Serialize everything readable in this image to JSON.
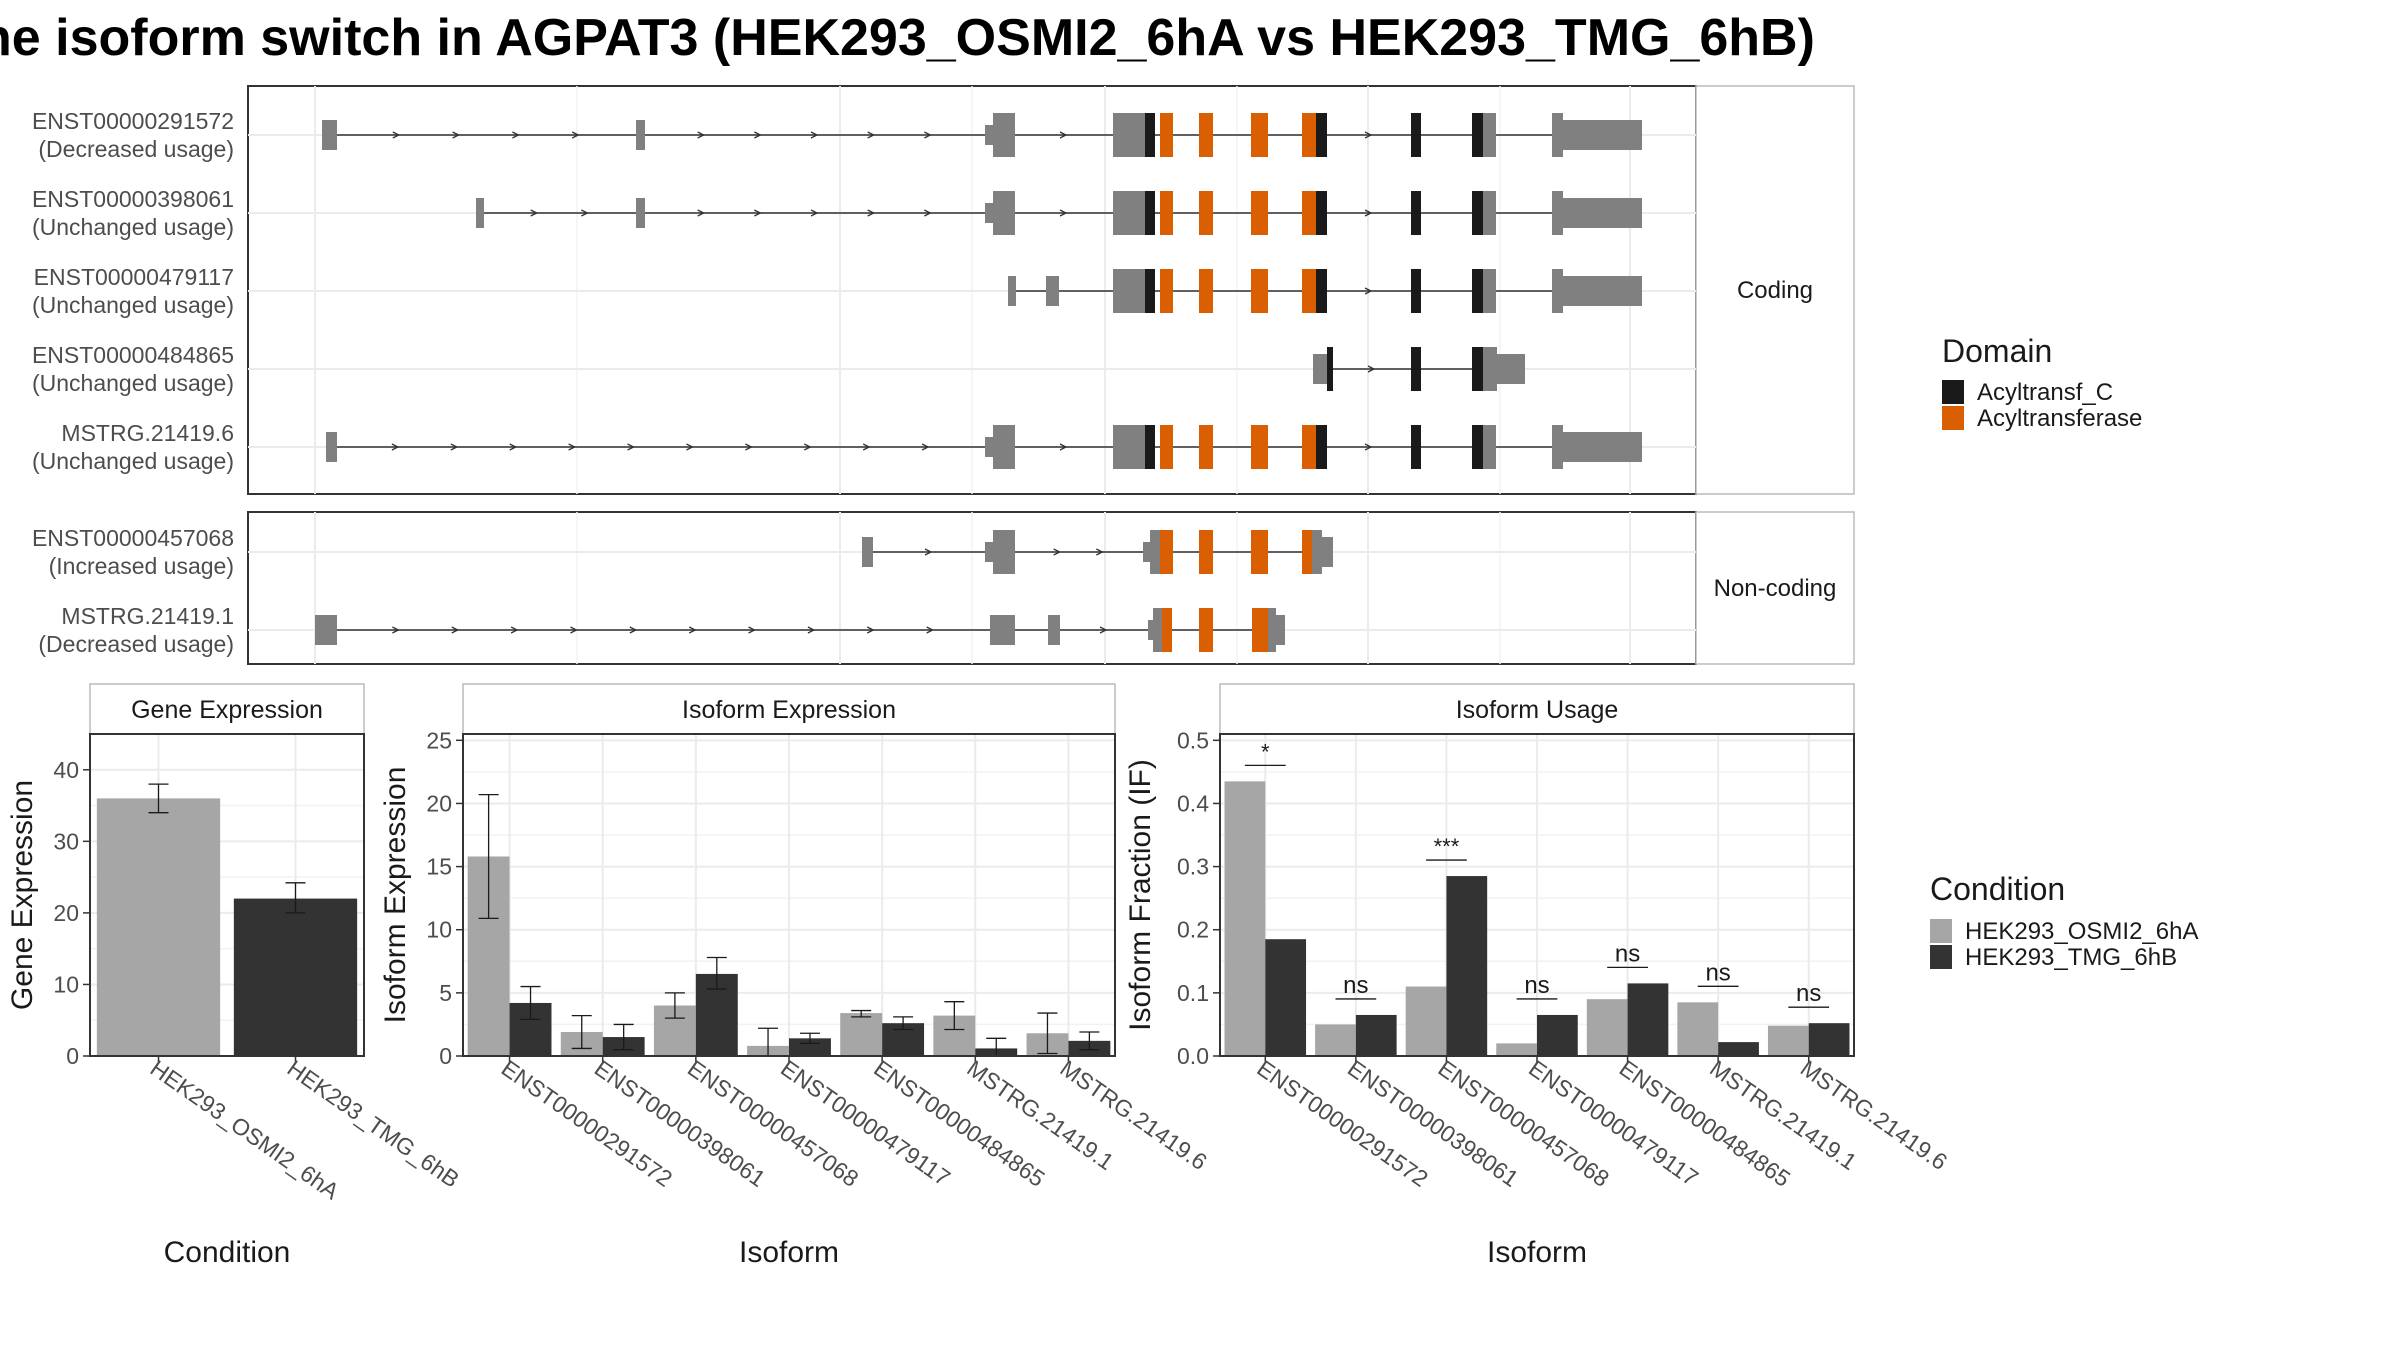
{
  "title": "he isoform switch in AGPAT3 (HEK293_OSMI2_6hA vs HEK293_TMG_6hB)",
  "colors": {
    "domain_acyltransf_c": "#1a1a1a",
    "domain_acyltransferase": "#d95f02",
    "exon": "#808080",
    "condition_a": "#a6a6a6",
    "condition_b": "#333333"
  },
  "structure": {
    "coding_label": "Coding",
    "noncoding_label": "Non-coding",
    "coding": [
      {
        "id": "ENST00000291572",
        "usage": "(Decreased usage)"
      },
      {
        "id": "ENST00000398061",
        "usage": "(Unchanged usage)"
      },
      {
        "id": "ENST00000479117",
        "usage": "(Unchanged usage)"
      },
      {
        "id": "ENST00000484865",
        "usage": "(Unchanged usage)"
      },
      {
        "id": "MSTRG.21419.6",
        "usage": "(Unchanged usage)"
      }
    ],
    "noncoding": [
      {
        "id": "ENST00000457068",
        "usage": "(Increased usage)"
      },
      {
        "id": "MSTRG.21419.1",
        "usage": "(Decreased usage)"
      }
    ]
  },
  "legends": {
    "domain_title": "Domain",
    "domain_items": [
      "Acyltransf_C",
      "Acyltransferase"
    ],
    "condition_title": "Condition",
    "condition_items": [
      "HEK293_OSMI2_6hA",
      "HEK293_TMG_6hB"
    ]
  },
  "chart_data": [
    {
      "type": "bar",
      "title": "Gene Expression",
      "xlabel": "Condition",
      "ylabel": "Gene Expression",
      "categories": [
        "HEK293_OSMI2_6hA",
        "HEK293_TMG_6hB"
      ],
      "values": [
        36,
        22
      ],
      "errors": [
        [
          34,
          38
        ],
        [
          20,
          24.2
        ]
      ],
      "yticks": [
        0,
        10,
        20,
        30,
        40
      ],
      "ylim": [
        0,
        45
      ]
    },
    {
      "type": "bar",
      "title": "Isoform Expression",
      "xlabel": "Isoform",
      "ylabel": "Isoform Expression",
      "categories": [
        "ENST00000291572",
        "ENST00000398061",
        "ENST00000457068",
        "ENST00000479117",
        "ENST00000484865",
        "MSTRG.21419.1",
        "MSTRG.21419.6"
      ],
      "series": [
        {
          "name": "HEK293_OSMI2_6hA",
          "values": [
            15.8,
            1.9,
            4.0,
            0.8,
            3.4,
            3.2,
            1.8
          ],
          "errors": [
            [
              10.9,
              20.7
            ],
            [
              0.6,
              3.2
            ],
            [
              3.0,
              5.0
            ],
            [
              0.0,
              2.2
            ],
            [
              3.1,
              3.6
            ],
            [
              2.1,
              4.3
            ],
            [
              0.2,
              3.4
            ]
          ]
        },
        {
          "name": "HEK293_TMG_6hB",
          "values": [
            4.2,
            1.5,
            6.5,
            1.4,
            2.6,
            0.6,
            1.2
          ],
          "errors": [
            [
              2.9,
              5.5
            ],
            [
              0.5,
              2.5
            ],
            [
              5.3,
              7.8
            ],
            [
              1.0,
              1.8
            ],
            [
              2.1,
              3.1
            ],
            [
              0.0,
              1.4
            ],
            [
              0.5,
              1.9
            ]
          ]
        }
      ],
      "yticks": [
        0,
        5,
        10,
        15,
        20,
        25
      ],
      "ylim": [
        0,
        25.5
      ]
    },
    {
      "type": "bar",
      "title": "Isoform Usage",
      "xlabel": "Isoform",
      "ylabel": "Isoform Fraction (IF)",
      "categories": [
        "ENST00000291572",
        "ENST00000398061",
        "ENST00000457068",
        "ENST00000479117",
        "ENST00000484865",
        "MSTRG.21419.1",
        "MSTRG.21419.6"
      ],
      "series": [
        {
          "name": "HEK293_OSMI2_6hA",
          "values": [
            0.435,
            0.05,
            0.11,
            0.02,
            0.09,
            0.085,
            0.048
          ]
        },
        {
          "name": "HEK293_TMG_6hB",
          "values": [
            0.185,
            0.065,
            0.285,
            0.065,
            0.115,
            0.022,
            0.052
          ]
        }
      ],
      "significance": [
        "*",
        "ns",
        "***",
        "ns",
        "ns",
        "ns",
        "ns"
      ],
      "yticks": [
        0.0,
        0.1,
        0.2,
        0.3,
        0.4,
        0.5
      ],
      "ytick_labels": [
        "0.0",
        "0.1",
        "0.2",
        "0.3",
        "0.4",
        "0.5"
      ],
      "ylim": [
        0,
        0.51
      ]
    }
  ]
}
